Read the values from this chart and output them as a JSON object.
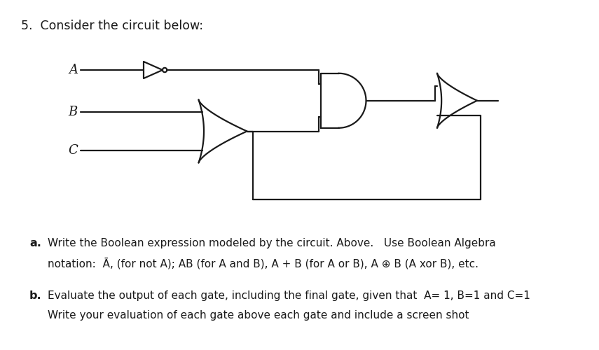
{
  "title": "5.  Consider the circuit below:",
  "background_color": "#ffffff",
  "text_color": "#1a1a1a",
  "part_a_bold": "a.",
  "part_a_line1": "Write the Boolean expression modeled by the circuit. Above.   Use Boolean Algebra",
  "part_a_line2": "notation:  Ā, (for not A); AB (for A and B), A + B (for A or B), A ⊕ B (A xor B), etc.",
  "part_b_bold": "b.",
  "part_b_line1": "Evaluate the output of each gate, including the final gate, given that  A= 1, B=1 and C=1",
  "part_b_line2": "Write your evaluation of each gate above each gate and include a screen shot",
  "lw": 1.6,
  "fig_w": 8.55,
  "fig_h": 5.0,
  "dpi": 100
}
